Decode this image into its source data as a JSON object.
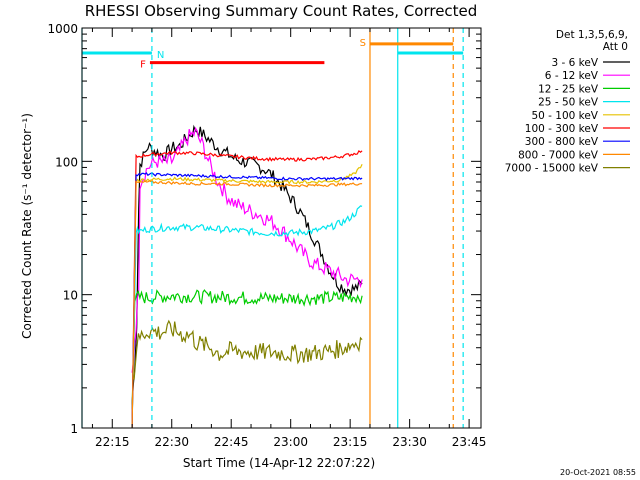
{
  "chart_data": {
    "type": "line",
    "title": "RHESSI Observing Summary Count Rates, Corrected",
    "xlabel": "Start Time (14-Apr-12 22:07:22)",
    "ylabel": "Corrected Count Rate (s⁻¹ detector⁻¹)",
    "yscale": "log",
    "xlim": [
      "22:07:22",
      "23:48:00"
    ],
    "ylim": [
      1,
      1000
    ],
    "x_ticks": [
      "22:15",
      "22:30",
      "22:45",
      "23:00",
      "23:15",
      "23:30",
      "23:45"
    ],
    "y_ticks": [
      "1",
      "10",
      "100",
      "1000"
    ],
    "legend_title": [
      "Det 1,3,5,6,9,",
      "Att 0"
    ],
    "legend_position": "right",
    "timestamp": "20-Oct-2021 08:55",
    "series": [
      {
        "name": "3 - 6 keV",
        "color": "#000000",
        "t": [
          "22:20",
          "22:20:40",
          "22:21:10",
          "22:21:40",
          "22:22",
          "22:24",
          "22:26",
          "22:28",
          "22:30",
          "22:32",
          "22:34",
          "22:36",
          "22:38",
          "22:40",
          "22:42",
          "22:44",
          "22:46",
          "22:48",
          "22:50",
          "22:52",
          "22:54",
          "22:56",
          "22:58",
          "23:00",
          "23:02",
          "23:04",
          "23:06",
          "23:08",
          "23:10",
          "23:12",
          "23:14",
          "23:16",
          "23:18"
        ],
        "values": [
          1.5,
          3,
          6,
          45,
          95,
          130,
          118,
          110,
          125,
          130,
          152,
          175,
          158,
          140,
          124,
          114,
          104,
          100,
          96,
          92,
          85,
          75,
          64,
          53,
          44,
          34,
          26,
          20,
          15,
          12,
          11,
          11,
          12
        ]
      },
      {
        "name": "6 - 12 keV",
        "color": "#ff00ff",
        "t": [
          "22:20",
          "22:21",
          "22:21:40",
          "22:22",
          "22:24",
          "22:26",
          "22:28",
          "22:30",
          "22:32",
          "22:34",
          "22:36",
          "22:38",
          "22:40",
          "22:42",
          "22:44",
          "22:46",
          "22:48",
          "22:50",
          "22:52",
          "22:54",
          "22:56",
          "22:58",
          "23:00",
          "23:02",
          "23:04",
          "23:06",
          "23:08",
          "23:10",
          "23:12",
          "23:14",
          "23:16",
          "23:18"
        ],
        "values": [
          2.5,
          6,
          12,
          70,
          90,
          100,
          98,
          100,
          120,
          150,
          165,
          128,
          88,
          68,
          55,
          48,
          45,
          42,
          40,
          37,
          34,
          30,
          26,
          22,
          19,
          17,
          16,
          15,
          14,
          13,
          13,
          13
        ]
      },
      {
        "name": "12 - 25 keV",
        "color": "#00cc00",
        "t": [
          "22:20",
          "22:20:40",
          "22:21:10",
          "22:24",
          "22:30",
          "22:36",
          "22:42",
          "22:48",
          "22:54",
          "23:00",
          "23:06",
          "23:12",
          "23:18"
        ],
        "values": [
          1.5,
          8,
          9.6,
          9.5,
          9.8,
          9.7,
          9.6,
          9.5,
          9.4,
          9.4,
          9.4,
          9.5,
          9.8
        ]
      },
      {
        "name": "25 - 50 keV",
        "color": "#00e5ee",
        "t": [
          "22:20",
          "22:21",
          "22:22",
          "22:24",
          "22:30",
          "22:36",
          "22:42",
          "22:48",
          "22:54",
          "23:00",
          "23:06",
          "23:10",
          "23:14",
          "23:16",
          "23:18"
        ],
        "values": [
          1,
          30,
          30,
          31,
          32,
          32,
          31,
          30,
          29,
          29,
          30,
          32,
          36,
          40,
          46
        ]
      },
      {
        "name": "50 - 100 keV",
        "color": "#e6c200",
        "t": [
          "22:20",
          "22:21",
          "22:24",
          "22:30",
          "22:36",
          "22:42",
          "22:48",
          "22:54",
          "23:00",
          "23:06",
          "23:12",
          "23:16",
          "23:18"
        ],
        "values": [
          1,
          72,
          73,
          74,
          73,
          72,
          71,
          70,
          70,
          70,
          72,
          80,
          95
        ]
      },
      {
        "name": "100 - 300 keV",
        "color": "#ff0000",
        "t": [
          "22:20",
          "22:21",
          "22:24",
          "22:30",
          "22:36",
          "22:42",
          "22:48",
          "22:54",
          "23:00",
          "23:06",
          "23:12",
          "23:16",
          "23:18"
        ],
        "values": [
          1,
          108,
          112,
          116,
          115,
          111,
          107,
          104,
          103,
          104,
          108,
          114,
          120
        ]
      },
      {
        "name": "300 - 800 keV",
        "color": "#0000ff",
        "t": [
          "22:20",
          "22:21",
          "22:24",
          "22:30",
          "22:36",
          "22:42",
          "22:48",
          "22:54",
          "23:00",
          "23:06",
          "23:12",
          "23:18"
        ],
        "values": [
          1,
          80,
          80,
          79,
          78,
          77,
          76,
          75,
          74,
          74,
          74,
          75
        ]
      },
      {
        "name": "800 - 7000 keV",
        "color": "#ff8800",
        "t": [
          "22:20",
          "22:21",
          "22:24",
          "22:30",
          "22:36",
          "22:42",
          "22:48",
          "22:54",
          "23:00",
          "23:06",
          "23:12",
          "23:18"
        ],
        "values": [
          1,
          69,
          70,
          69,
          68,
          68,
          67,
          66,
          66,
          66,
          67,
          68
        ]
      },
      {
        "name": "7000 - 15000 keV",
        "color": "#808000",
        "t": [
          "22:20:30",
          "22:21:10",
          "22:22",
          "22:24",
          "22:27",
          "22:30",
          "22:33",
          "22:35",
          "22:36",
          "22:40",
          "22:42",
          "22:45",
          "22:50",
          "22:55",
          "23:00",
          "23:04",
          "23:08",
          "23:12",
          "23:16",
          "23:18"
        ],
        "values": [
          2.5,
          4.2,
          4.8,
          5.4,
          5.2,
          5.5,
          5,
          5,
          4.4,
          4,
          3.6,
          3.8,
          3.7,
          3.7,
          3.6,
          3.6,
          3.7,
          3.9,
          4.3,
          4.6
        ]
      }
    ],
    "flags": [
      {
        "label": "N",
        "color": "#00e5ee",
        "level": 650,
        "segments": [
          [
            "22:07:22",
            "22:25:00"
          ],
          [
            "23:27:00",
            "23:43:30"
          ]
        ]
      },
      {
        "label": "F",
        "color": "#ff0000",
        "level": 550,
        "segments": [
          [
            "22:24:30",
            "23:08:30"
          ]
        ]
      },
      {
        "label": "S",
        "color": "#ff8800",
        "level": 760,
        "segments": [
          [
            "23:20:00",
            "23:41:00"
          ]
        ]
      }
    ],
    "markers": [
      {
        "color": "#00e5ee",
        "style": "solid",
        "t": [
          "22:07:22",
          "23:27:00"
        ]
      },
      {
        "color": "#00e5ee",
        "style": "dashed",
        "t": [
          "22:25:00",
          "23:43:30"
        ]
      },
      {
        "color": "#ff8800",
        "style": "solid",
        "t": [
          "23:20:00"
        ]
      },
      {
        "color": "#ff8800",
        "style": "dashed",
        "t": [
          "23:41:00"
        ]
      }
    ]
  }
}
